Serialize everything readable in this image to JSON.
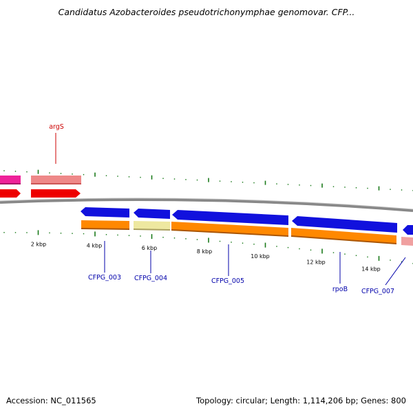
{
  "title": "Candidatus Azobacteroides pseudotrichonymphae genomovar. CFP...",
  "footer": {
    "accession_label": "Accession:",
    "accession": "NC_011565",
    "topology_label": "Topology:",
    "topology": "circular",
    "length_label": "Length:",
    "length": "1,114,206 bp",
    "genes_label": "Genes:",
    "genes": "800"
  },
  "scale": {
    "unit": "kbp",
    "labels": [
      "2 kbp",
      "4 kbp",
      "6 kbp",
      "8 kbp",
      "10 kbp",
      "12 kbp",
      "14 kbp"
    ]
  },
  "genes": [
    {
      "label": "argS",
      "color": "#cc0000"
    },
    {
      "label": "CFPG_003",
      "color": "#0000aa"
    },
    {
      "label": "CFPG_004",
      "color": "#0000aa"
    },
    {
      "label": "CFPG_005",
      "color": "#0000aa"
    },
    {
      "label": "rpoB",
      "color": "#0000aa"
    },
    {
      "label": "CFPG_007",
      "color": "#0000aa"
    }
  ],
  "colors": {
    "backbone": "#888888",
    "tick": "#1a7a1a",
    "forward_cds": "#ee0000",
    "forward_rna": "#ee8888",
    "magenta": "#ee2299",
    "reverse_cds": "#1111dd",
    "orange": "#ff8800",
    "pale_yellow": "#eee8a0",
    "pink": "#f0a0a0"
  }
}
